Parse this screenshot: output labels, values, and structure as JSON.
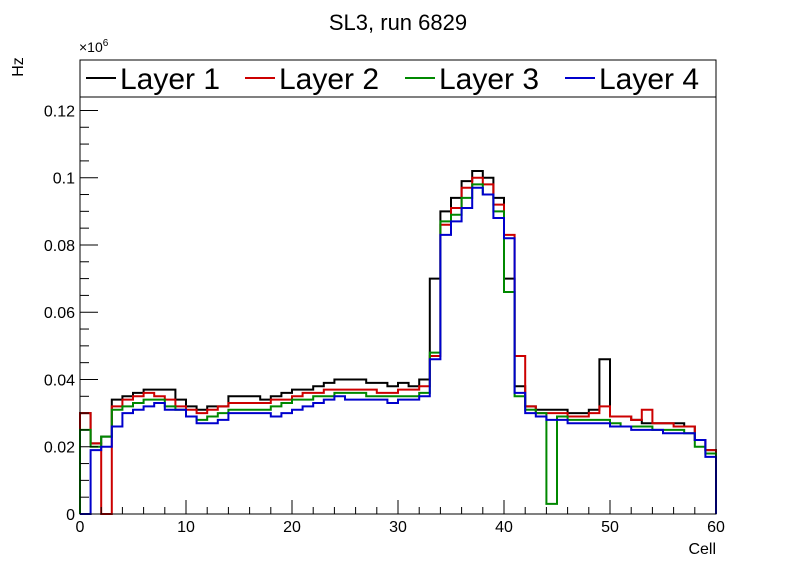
{
  "chart_data": {
    "type": "line",
    "title": "SL3, run 6829",
    "xlabel": "Cell",
    "ylabel": "Hz",
    "exponent_label": "×10",
    "exponent_power": "6",
    "xlim": [
      0,
      60
    ],
    "ylim": [
      0,
      0.135
    ],
    "xticks": [
      0,
      10,
      20,
      30,
      40,
      50,
      60
    ],
    "xtick_labels": [
      "0",
      "10",
      "20",
      "30",
      "40",
      "50",
      "60"
    ],
    "yticks": [
      0,
      0.02,
      0.04,
      0.06,
      0.08,
      0.1,
      0.12
    ],
    "ytick_labels": [
      "0",
      "0.02",
      "0.04",
      "0.06",
      "0.08",
      "0.1",
      "0.12"
    ],
    "grid": false,
    "legend_position": "top",
    "step_width": 1,
    "series": [
      {
        "name": "Layer 1",
        "color": "#000000",
        "values": [
          0.03,
          0.021,
          0.023,
          0.034,
          0.035,
          0.036,
          0.037,
          0.037,
          0.037,
          0.034,
          0.032,
          0.031,
          0.032,
          0.032,
          0.035,
          0.035,
          0.035,
          0.034,
          0.035,
          0.036,
          0.037,
          0.037,
          0.038,
          0.039,
          0.04,
          0.04,
          0.04,
          0.039,
          0.039,
          0.038,
          0.039,
          0.038,
          0.04,
          0.07,
          0.09,
          0.094,
          0.099,
          0.102,
          0.1,
          0.094,
          0.07,
          0.038,
          0.032,
          0.031,
          0.031,
          0.031,
          0.03,
          0.03,
          0.031,
          0.046,
          0.029,
          0.029,
          0.028,
          0.027,
          0.027,
          0.027,
          0.027,
          0.026,
          0.022,
          0.019
        ]
      },
      {
        "name": "Layer 2",
        "color": "#cc0000",
        "values": [
          0.03,
          0.021,
          0.0,
          0.032,
          0.034,
          0.035,
          0.036,
          0.035,
          0.034,
          0.032,
          0.031,
          0.03,
          0.031,
          0.032,
          0.033,
          0.033,
          0.033,
          0.033,
          0.034,
          0.034,
          0.035,
          0.036,
          0.036,
          0.037,
          0.037,
          0.037,
          0.037,
          0.037,
          0.036,
          0.036,
          0.037,
          0.037,
          0.038,
          0.047,
          0.086,
          0.091,
          0.097,
          0.1,
          0.098,
          0.092,
          0.083,
          0.047,
          0.032,
          0.03,
          0.03,
          0.03,
          0.029,
          0.029,
          0.03,
          0.032,
          0.029,
          0.029,
          0.028,
          0.031,
          0.027,
          0.027,
          0.026,
          0.026,
          0.022,
          0.019
        ]
      },
      {
        "name": "Layer 3",
        "color": "#008800",
        "values": [
          0.025,
          0.02,
          0.023,
          0.031,
          0.032,
          0.033,
          0.034,
          0.034,
          0.032,
          0.031,
          0.029,
          0.028,
          0.029,
          0.03,
          0.031,
          0.031,
          0.031,
          0.031,
          0.032,
          0.033,
          0.034,
          0.034,
          0.035,
          0.035,
          0.036,
          0.036,
          0.036,
          0.035,
          0.035,
          0.035,
          0.035,
          0.035,
          0.036,
          0.048,
          0.087,
          0.089,
          0.094,
          0.098,
          0.095,
          0.09,
          0.066,
          0.035,
          0.031,
          0.03,
          0.003,
          0.029,
          0.028,
          0.028,
          0.028,
          0.028,
          0.027,
          0.026,
          0.026,
          0.026,
          0.025,
          0.025,
          0.025,
          0.024,
          0.02,
          0.018
        ]
      },
      {
        "name": "Layer 4",
        "color": "#0000cc",
        "values": [
          0.0,
          0.019,
          0.02,
          0.026,
          0.03,
          0.031,
          0.032,
          0.033,
          0.031,
          0.031,
          0.029,
          0.027,
          0.027,
          0.028,
          0.03,
          0.03,
          0.03,
          0.03,
          0.029,
          0.03,
          0.031,
          0.032,
          0.033,
          0.034,
          0.035,
          0.034,
          0.034,
          0.034,
          0.034,
          0.033,
          0.034,
          0.034,
          0.035,
          0.046,
          0.083,
          0.087,
          0.091,
          0.097,
          0.095,
          0.088,
          0.082,
          0.036,
          0.03,
          0.029,
          0.028,
          0.028,
          0.027,
          0.027,
          0.027,
          0.027,
          0.026,
          0.026,
          0.025,
          0.025,
          0.025,
          0.024,
          0.024,
          0.024,
          0.022,
          0.017
        ]
      }
    ]
  }
}
